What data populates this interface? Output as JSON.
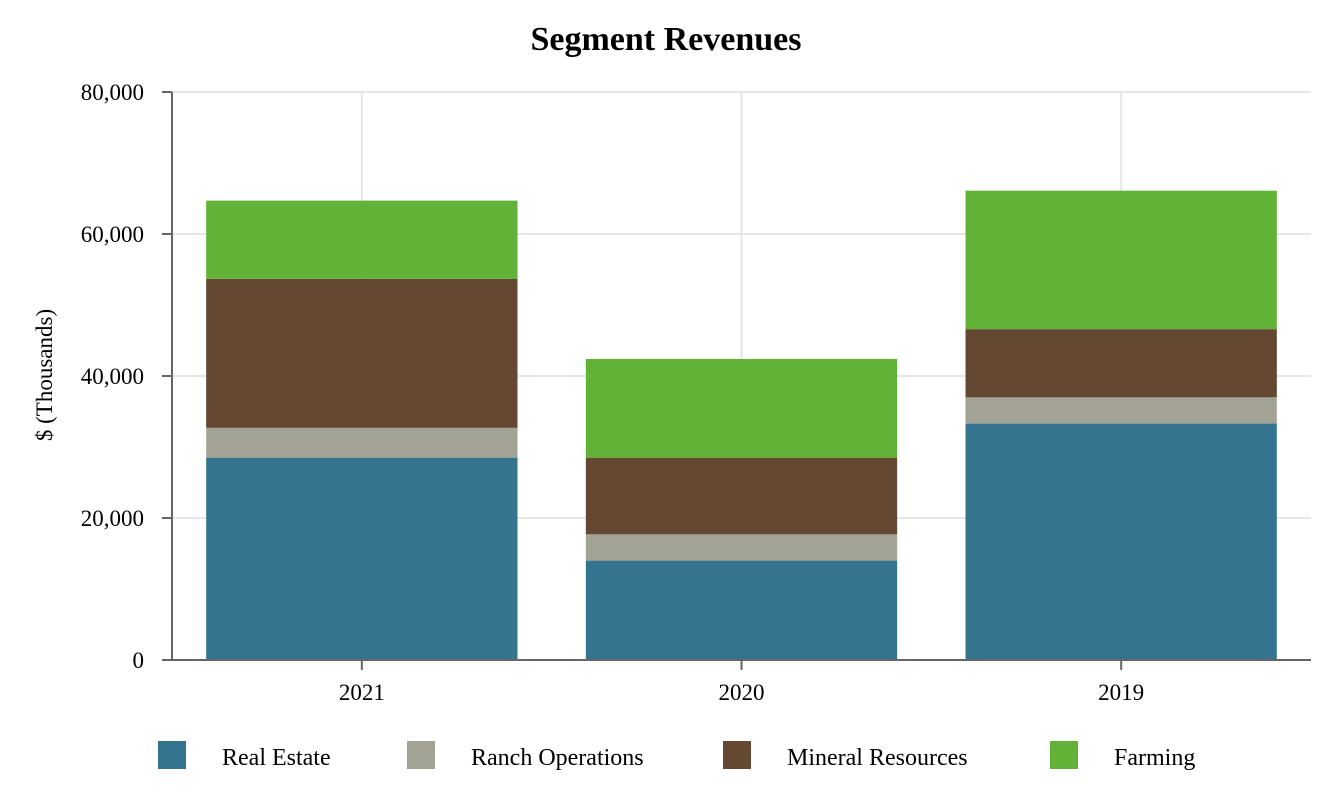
{
  "chart_data": {
    "type": "bar",
    "stacked": true,
    "title": "Segment Revenues",
    "xlabel": "",
    "ylabel": "$ (Thousands)",
    "categories": [
      "2021",
      "2020",
      "2019"
    ],
    "ylim": [
      0,
      80000
    ],
    "yticks": [
      0,
      20000,
      40000,
      60000,
      80000
    ],
    "ytick_labels": [
      "0",
      "20,000",
      "40,000",
      "60,000",
      "80,000"
    ],
    "grid": true,
    "legend_position": "bottom",
    "series": [
      {
        "name": "Real Estate",
        "color": "#35748f",
        "values": [
          28500,
          14000,
          33300
        ]
      },
      {
        "name": "Ranch Operations",
        "color": "#a2a295",
        "values": [
          4200,
          3700,
          3700
        ]
      },
      {
        "name": "Mineral Resources",
        "color": "#654831",
        "values": [
          21000,
          10800,
          9600
        ]
      },
      {
        "name": "Farming",
        "color": "#61b236",
        "values": [
          11000,
          13900,
          19500
        ]
      }
    ]
  }
}
